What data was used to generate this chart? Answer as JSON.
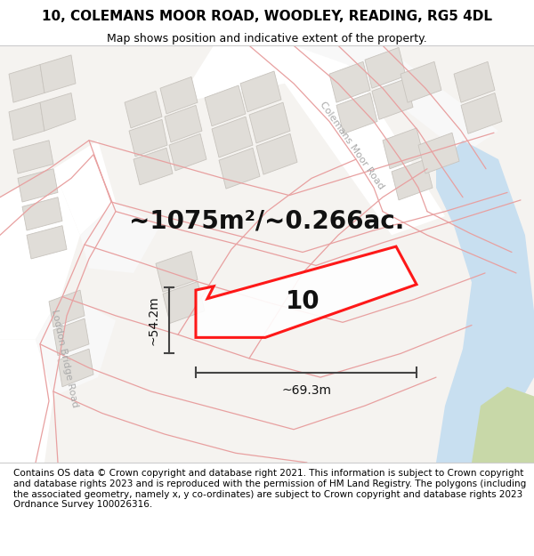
{
  "title": "10, COLEMANS MOOR ROAD, WOODLEY, READING, RG5 4DL",
  "subtitle": "Map shows position and indicative extent of the property.",
  "footer": "Contains OS data © Crown copyright and database right 2021. This information is subject to Crown copyright and database rights 2023 and is reproduced with the permission of HM Land Registry. The polygons (including the associated geometry, namely x, y co-ordinates) are subject to Crown copyright and database rights 2023 Ordnance Survey 100026316.",
  "area_label": "~1075m²/~0.266ac.",
  "width_label": "~69.3m",
  "height_label": "~54.2m",
  "property_number": "10",
  "map_bg": "#f5f3f0",
  "block_color": "#e0ddd8",
  "block_edge": "#c8c4be",
  "road_line_color": "#e8a0a0",
  "plot_outline_color": "#ff0000",
  "water_color": "#c8dff0",
  "green_color": "#c8d8a8",
  "dim_color": "#444444",
  "title_fontsize": 11,
  "subtitle_fontsize": 9,
  "footer_fontsize": 7.5,
  "area_fontsize": 20,
  "number_fontsize": 20,
  "dim_label_fontsize": 10,
  "road_label_fontsize": 8,
  "road_label_color": "#aaaaaa"
}
